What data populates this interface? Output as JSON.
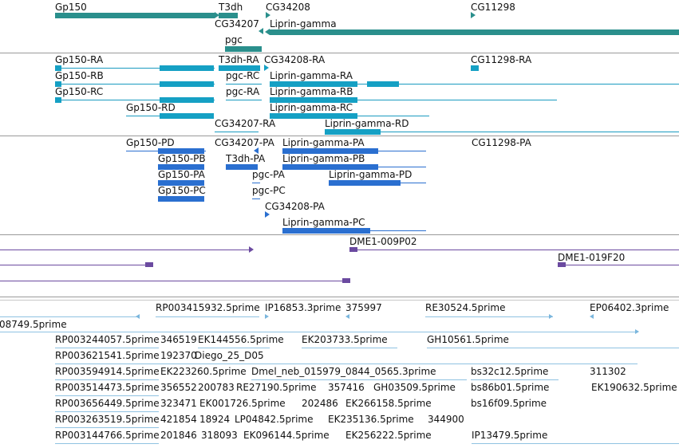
{
  "genes": [
    "Gp150",
    "T3dh",
    "CG34208",
    "CG11298",
    "CG34207",
    "Liprin-gamma",
    "pgc"
  ],
  "transcripts": [
    "Gp150-RA",
    "T3dh-RA",
    "CG34208-RA",
    "CG11298-RA",
    "Gp150-RB",
    "pgc-RC",
    "Liprin-gamma-RA",
    "Gp150-RC",
    "pgc-RA",
    "Liprin-gamma-RB",
    "Gp150-RD",
    "Liprin-gamma-RC",
    "CG34207-RA",
    "Liprin-gamma-RD"
  ],
  "proteins": [
    "Gp150-PD",
    "CG34207-PA",
    "Liprin-gamma-PA",
    "CG11298-PA",
    "Gp150-PB",
    "T3dh-PA",
    "Liprin-gamma-PB",
    "Gp150-PA",
    "pgc-PA",
    "Liprin-gamma-PD",
    "Gp150-PC",
    "pgc-PC",
    "CG34208-PA",
    "Liprin-gamma-PC"
  ],
  "clones": [
    "DME1-009P02",
    "DME1-019F20"
  ],
  "ests": [
    "RP003415932.5prime",
    "IP16853.3prime",
    "375997",
    "RE30524.5prime",
    "EP06402.3prime",
    "08749.5prime",
    "RP003244057.5prime",
    "346519",
    "EK144556.5prime",
    "EK203733.5prime",
    "GH10561.5prime",
    "RP003621541.5prime",
    "192370",
    "Diego_25_D05",
    "RP003594914.5prime",
    "EK223260.5prime",
    "Dmel_neb_015979_0844_0565.3prime",
    "bs32c12.5prime",
    "311302",
    "RP003514473.5prime",
    "356552",
    "200783",
    "RE27190.5prime",
    "357416",
    "GH03509.5prime",
    "bs86b01.5prime",
    "EK190632.5prime",
    "RP003656449.5prime",
    "323471",
    "EK001726.5prime",
    "202486",
    "EK266158.5prime",
    "bs16f09.5prime",
    "RP003263519.5prime",
    "421854",
    "18924",
    "LP04842.5prime",
    "EK235136.5prime",
    "344900",
    "RP003144766.5prime",
    "201846",
    "318093",
    "EK096144.5prime",
    "EK256222.5prime",
    "IP13479.5prime"
  ]
}
